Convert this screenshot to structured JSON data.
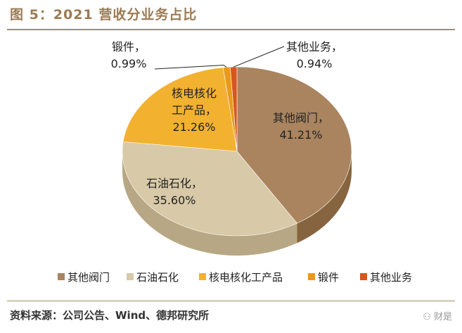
{
  "figure_title": "图 5：2021 营收分业务占比",
  "source_text": "资料来源：公司公告、Wind、德邦研究所",
  "watermark": "财是",
  "chart_data": {
    "type": "pie",
    "style": "3d",
    "title": "图 5：2021 营收分业务占比",
    "legend_position": "bottom",
    "categories": [
      "其他阀门",
      "石油石化",
      "核电核化工产品",
      "锻件",
      "其他业务"
    ],
    "values": [
      41.21,
      35.6,
      21.26,
      0.99,
      0.94
    ],
    "value_labels": [
      "41.21%",
      "35.60%",
      "21.26%",
      "0.99%",
      "0.94%"
    ],
    "slice_labels": [
      "其他阀门，",
      "石油石化，",
      "核电核化工产品，",
      "锻件，",
      "其他业务，"
    ],
    "colors": [
      "#a9845f",
      "#d8c9a8",
      "#f2b22f",
      "#e89a1c",
      "#d8561c"
    ],
    "side_colors": [
      "#86643f",
      "#b8a784",
      "#c98f1a",
      "#c07a10",
      "#a8400f"
    ]
  }
}
